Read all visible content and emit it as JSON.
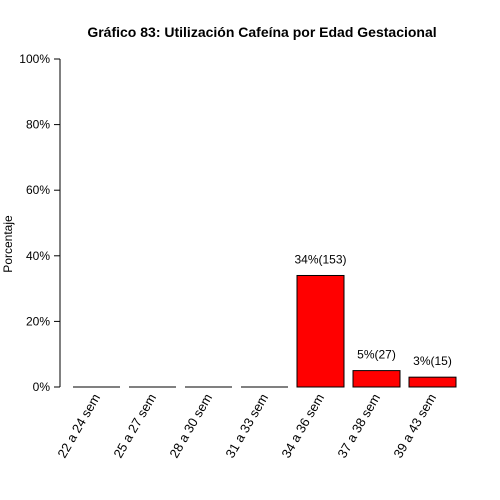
{
  "chart_data": {
    "type": "bar",
    "title": "Gráfico 83: Utilización Cafeína por  Edad Gestacional",
    "xlabel": "",
    "ylabel": "Porcentaje",
    "ylim": [
      0,
      100
    ],
    "yticks": [
      {
        "value": 0,
        "label": "0%"
      },
      {
        "value": 20,
        "label": "20%"
      },
      {
        "value": 40,
        "label": "40%"
      },
      {
        "value": 60,
        "label": "60%"
      },
      {
        "value": 80,
        "label": "80%"
      },
      {
        "value": 100,
        "label": "100%"
      }
    ],
    "categories": [
      "22 a 24 sem",
      "25 a 27 sem",
      "28 a 30 sem",
      "31 a 33 sem",
      "34 a 36 sem",
      "37 a 38 sem",
      "39 a 43 sem"
    ],
    "values": [
      0,
      0,
      0,
      0,
      34,
      5,
      3
    ],
    "data_labels": [
      "",
      "",
      "",
      "",
      "34%(153)",
      "5%(27)",
      "3%(15)"
    ],
    "bar_color": "#ff0000",
    "grid": false,
    "legend": "none"
  }
}
